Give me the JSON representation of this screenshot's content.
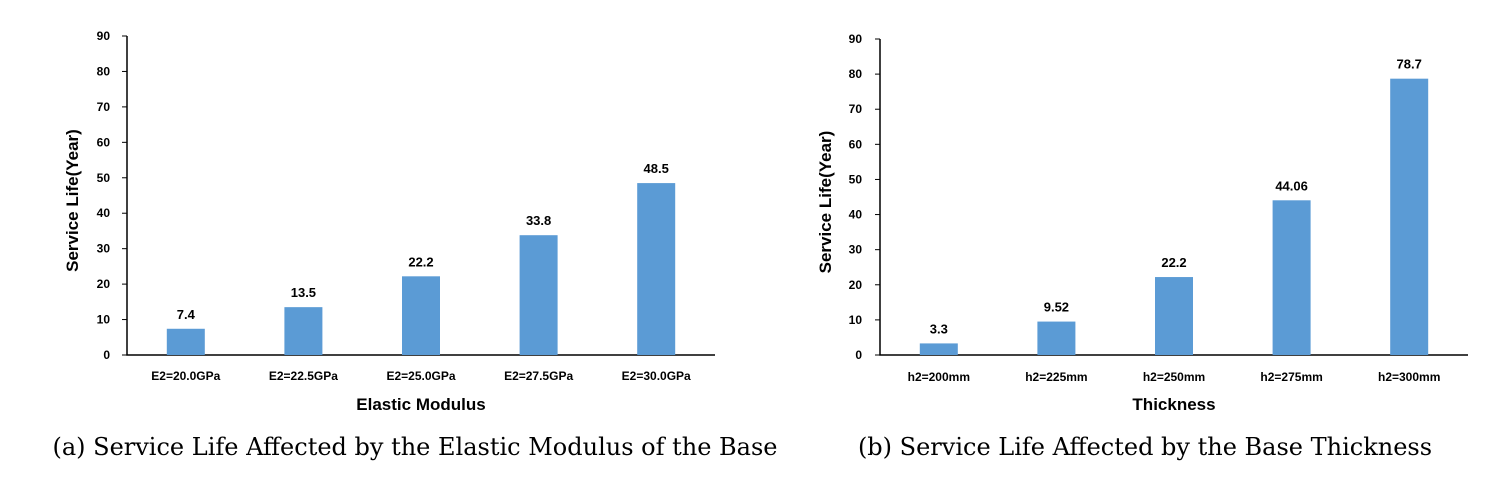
{
  "colors": {
    "bar": "#5b9bd5",
    "axis": "#000000"
  },
  "chart_data": [
    {
      "type": "bar",
      "title": "",
      "caption": "(a) Service Life Affected by the Elastic Modulus of the Base",
      "xlabel": "Elastic Modulus",
      "ylabel": "Service Life(Year)",
      "ylim": [
        0,
        90
      ],
      "yticks": [
        0,
        10,
        20,
        30,
        40,
        50,
        60,
        70,
        80,
        90
      ],
      "grid": false,
      "legend": "none",
      "categories": [
        "E2=20.0GPa",
        "E2=22.5GPa",
        "E2=25.0GPa",
        "E2=27.5GPa",
        "E2=30.0GPa"
      ],
      "values": [
        7.4,
        13.5,
        22.2,
        33.8,
        48.5
      ],
      "data_labels": [
        "7.4",
        "13.5",
        "22.2",
        "33.8",
        "48.5"
      ]
    },
    {
      "type": "bar",
      "title": "",
      "caption": "(b) Service Life Affected by the Base Thickness",
      "xlabel": "Thickness",
      "ylabel": "Service Life(Year)",
      "ylim": [
        0,
        90
      ],
      "yticks": [
        0,
        10,
        20,
        30,
        40,
        50,
        60,
        70,
        80,
        90
      ],
      "grid": false,
      "legend": "none",
      "categories": [
        "h2=200mm",
        "h2=225mm",
        "h2=250mm",
        "h2=275mm",
        "h2=300mm"
      ],
      "values": [
        3.3,
        9.52,
        22.2,
        44.06,
        78.7
      ],
      "data_labels": [
        "3.3",
        "9.52",
        "22.2",
        "44.06",
        "78.7"
      ]
    }
  ]
}
